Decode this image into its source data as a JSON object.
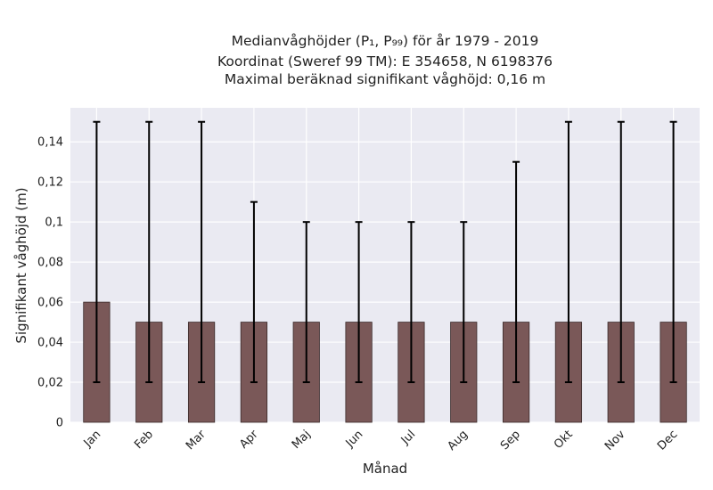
{
  "chart_data": {
    "type": "bar",
    "title_lines": [
      "Medianvåghöjder (P₁, P₉₉) för år 1979 - 2019",
      "Koordinat (Sweref 99 TM): E 354658, N 6198376",
      "Maximal beräknad signifikant våghöjd: 0,16 m"
    ],
    "xlabel": "Månad",
    "ylabel": "Signifikant våghöjd (m)",
    "categories": [
      "Jan",
      "Feb",
      "Mar",
      "Apr",
      "Maj",
      "Jun",
      "Jul",
      "Aug",
      "Sep",
      "Okt",
      "Nov",
      "Dec"
    ],
    "values": [
      0.06,
      0.05,
      0.05,
      0.05,
      0.05,
      0.05,
      0.05,
      0.05,
      0.05,
      0.05,
      0.05,
      0.05
    ],
    "error_low": [
      0.02,
      0.02,
      0.02,
      0.02,
      0.02,
      0.02,
      0.02,
      0.02,
      0.02,
      0.02,
      0.02,
      0.02
    ],
    "error_high": [
      0.15,
      0.15,
      0.15,
      0.11,
      0.1,
      0.1,
      0.1,
      0.1,
      0.13,
      0.15,
      0.15,
      0.15
    ],
    "yticks": [
      "0",
      "0,02",
      "0,04",
      "0,06",
      "0,08",
      "0,1",
      "0,12",
      "0,14"
    ],
    "ylim": [
      0,
      0.157
    ],
    "grid": true,
    "colors": {
      "bar": "#7a5858",
      "plot_background": "#eaeaf2",
      "grid": "#ffffff",
      "error_bar": "#000000"
    }
  }
}
